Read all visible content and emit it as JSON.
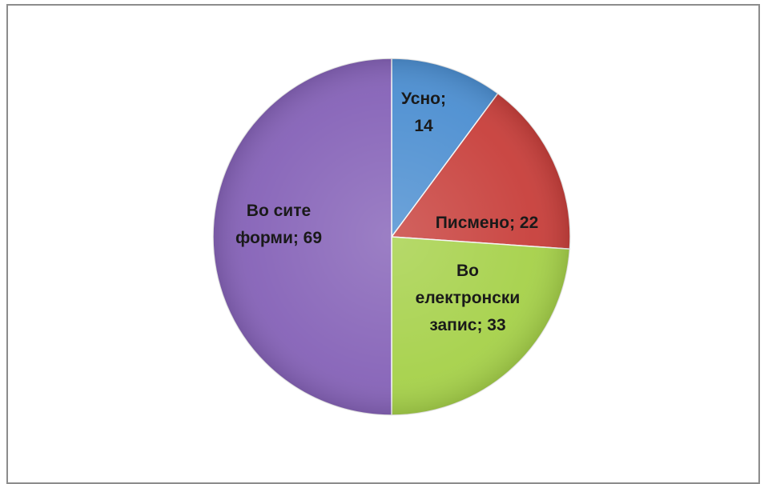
{
  "chart_data": {
    "type": "pie",
    "title": "",
    "slices": [
      {
        "name": "Усно",
        "value": 14,
        "color": "#4d8fd1",
        "label_lines": [
          "Усно;",
          "14"
        ]
      },
      {
        "name": "Писмено",
        "value": 22,
        "color": "#c8403c",
        "label_lines": [
          "Писмено; 22"
        ]
      },
      {
        "name": "Во електронски запис",
        "value": 33,
        "color": "#a6d14a",
        "label_lines": [
          "Во",
          "електронски",
          "запис; 33"
        ]
      },
      {
        "name": "Во сите форми",
        "value": 69,
        "color": "#8663b8",
        "label_lines": [
          "Во сите",
          "форми; 69"
        ]
      }
    ],
    "legend": "none",
    "data_labels": "category-and-value"
  }
}
